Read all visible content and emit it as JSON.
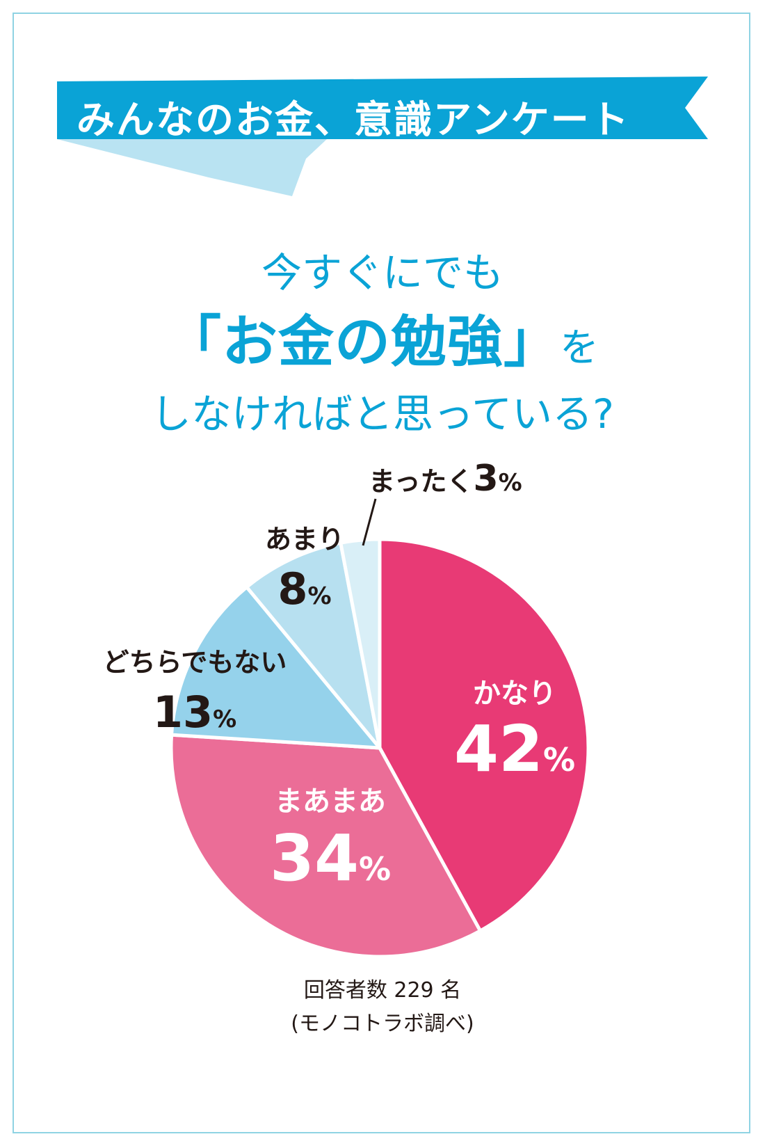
{
  "banner": {
    "title": "みんなのお金、意識アンケート"
  },
  "question": {
    "line1": "今すぐにでも",
    "line2_main": "「お金の勉強」",
    "line2_tail": "を",
    "line3": "しなければと思っている?"
  },
  "colors": {
    "banner": "#0aa3d6",
    "banner_tail": "#b9e3f2",
    "frame": "#8fd3e3",
    "question_text": "#0aa3d6",
    "outside_label": "#231815"
  },
  "chart_data": {
    "type": "pie",
    "start": "12 o'clock, clockwise",
    "slices": [
      {
        "category": "かなり",
        "value": 42,
        "label": "42",
        "color": "#e83a75",
        "label_color": "#ffffff",
        "label_placement": "inside"
      },
      {
        "category": "まあまあ",
        "value": 34,
        "label": "34",
        "color": "#eb6d97",
        "label_color": "#ffffff",
        "label_placement": "inside"
      },
      {
        "category": "どちらでもない",
        "value": 13,
        "label": "13",
        "color": "#95d2eb",
        "label_color": "#231815",
        "label_placement": "outside"
      },
      {
        "category": "あまり",
        "value": 8,
        "label": "8",
        "color": "#b7e0f0",
        "label_color": "#231815",
        "label_placement": "outside"
      },
      {
        "category": "まったく",
        "value": 3,
        "label": "3",
        "color": "#d9eff7",
        "label_color": "#231815",
        "label_placement": "outside-leader"
      }
    ],
    "unit": "%"
  },
  "footer": {
    "respondents": "回答者数 229 名",
    "source": "(モノコトラボ調べ)"
  }
}
